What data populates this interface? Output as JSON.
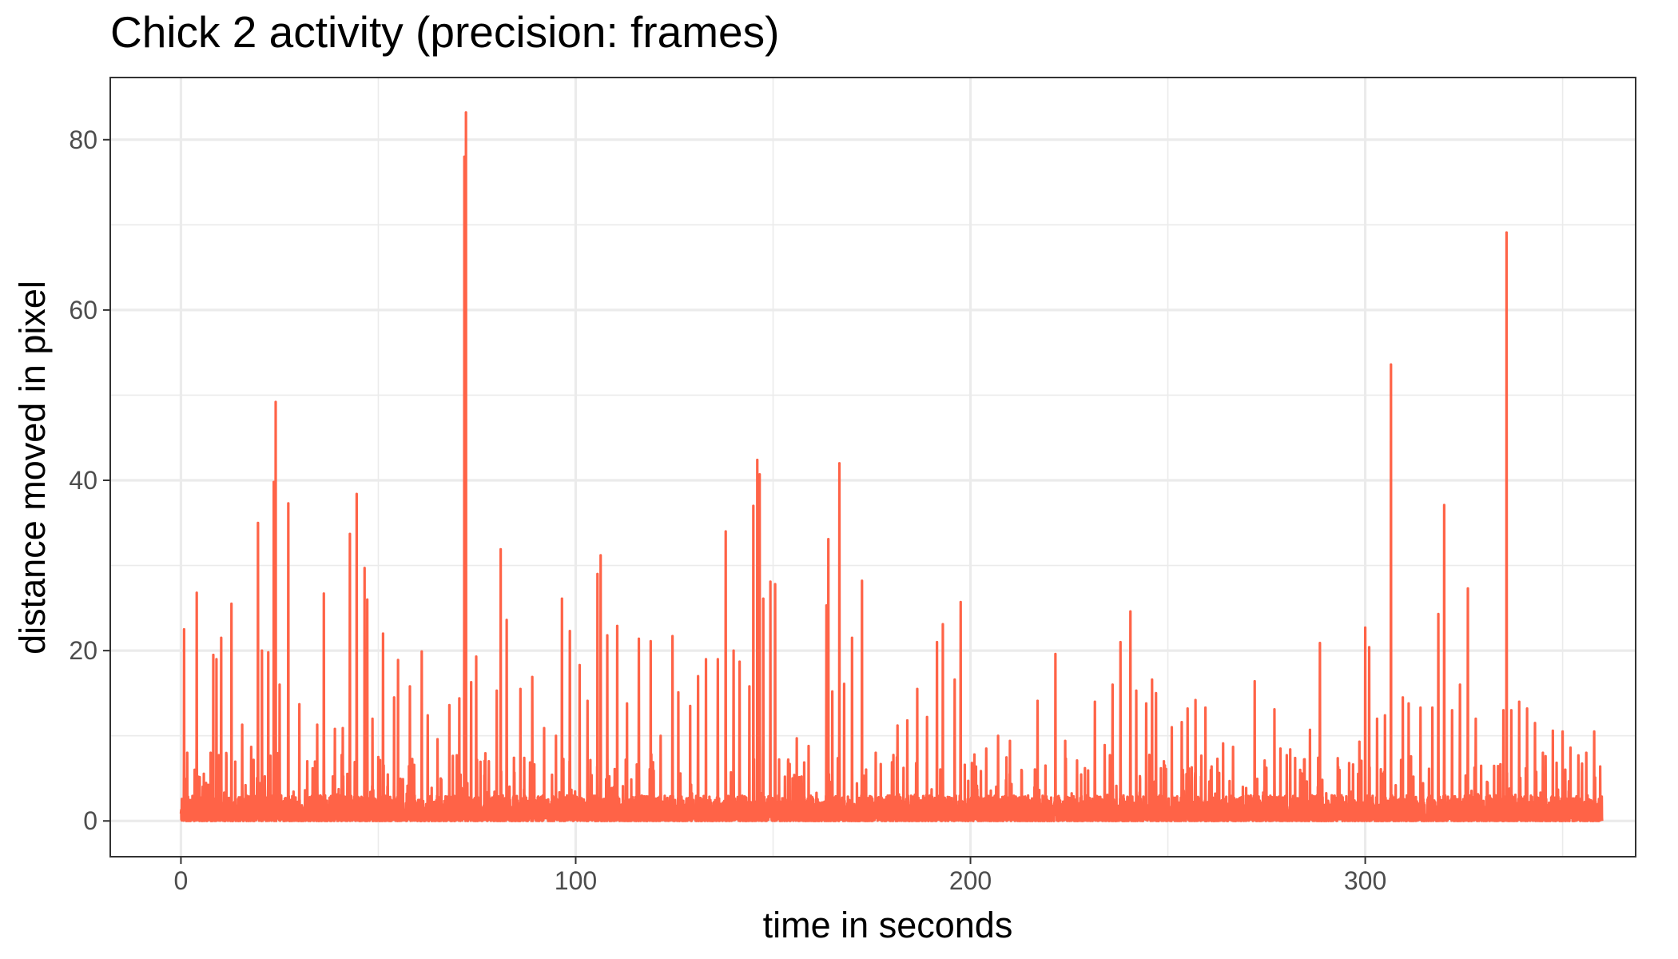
{
  "chart_data": {
    "type": "line",
    "title": "Chick 2 activity (precision: frames)",
    "xlabel": "time in seconds",
    "ylabel": "distance moved in pixel",
    "xlim": [
      -17.9,
      368.5
    ],
    "ylim": [
      -4.2,
      87.3
    ],
    "x_ticks": [
      0,
      100,
      200,
      300
    ],
    "y_ticks": [
      0,
      20,
      40,
      60,
      80
    ],
    "x_minor": [
      50,
      150,
      250,
      350
    ],
    "y_minor": [
      10,
      30,
      50,
      70
    ],
    "grid": true,
    "legend": "none",
    "color": "#FF6347",
    "series": [
      {
        "x": [
          0,
          360
        ],
        "sample_interval": 0.04,
        "baseline_max": 3,
        "peaks": [
          [
            0.8,
            22.5
          ],
          [
            1.6,
            8.0
          ],
          [
            4.0,
            26.8
          ],
          [
            7.5,
            8.0
          ],
          [
            8.2,
            19.5
          ],
          [
            9.0,
            19.0
          ],
          [
            10.2,
            21.5
          ],
          [
            12.8,
            25.5
          ],
          [
            15.5,
            11.3
          ],
          [
            17.8,
            8.7
          ],
          [
            19.5,
            35.0
          ],
          [
            20.5,
            20.0
          ],
          [
            22.1,
            19.8
          ],
          [
            23.5,
            39.8
          ],
          [
            24.0,
            49.2
          ],
          [
            25.0,
            16.0
          ],
          [
            27.2,
            37.3
          ],
          [
            30.0,
            13.7
          ],
          [
            32.0,
            7.0
          ],
          [
            34.5,
            11.3
          ],
          [
            36.2,
            26.7
          ],
          [
            39.0,
            10.8
          ],
          [
            41.0,
            10.9
          ],
          [
            42.8,
            33.7
          ],
          [
            44.5,
            38.4
          ],
          [
            46.5,
            29.7
          ],
          [
            47.2,
            26.0
          ],
          [
            48.5,
            12.0
          ],
          [
            50.0,
            7.5
          ],
          [
            51.2,
            22.0
          ],
          [
            54.0,
            14.5
          ],
          [
            55.0,
            18.9
          ],
          [
            58.0,
            15.8
          ],
          [
            61.0,
            19.9
          ],
          [
            62.5,
            12.4
          ],
          [
            65.0,
            9.6
          ],
          [
            68.0,
            13.6
          ],
          [
            70.5,
            14.4
          ],
          [
            71.8,
            78.0
          ],
          [
            72.2,
            83.2
          ],
          [
            73.5,
            16.3
          ],
          [
            74.8,
            19.3
          ],
          [
            78.0,
            7.0
          ],
          [
            80.0,
            15.3
          ],
          [
            81.0,
            31.9
          ],
          [
            82.5,
            23.6
          ],
          [
            86.0,
            15.5
          ],
          [
            89.0,
            16.9
          ],
          [
            92.0,
            10.9
          ],
          [
            95.0,
            10.0
          ],
          [
            96.5,
            26.1
          ],
          [
            98.5,
            22.3
          ],
          [
            101.0,
            18.3
          ],
          [
            103.0,
            14.1
          ],
          [
            105.5,
            29.0
          ],
          [
            106.3,
            31.2
          ],
          [
            108.0,
            21.8
          ],
          [
            110.5,
            22.9
          ],
          [
            113.0,
            13.8
          ],
          [
            116.0,
            21.4
          ],
          [
            119.0,
            21.1
          ],
          [
            121.5,
            10.0
          ],
          [
            124.5,
            21.7
          ],
          [
            126.0,
            15.1
          ],
          [
            129.0,
            13.5
          ],
          [
            131.0,
            17.0
          ],
          [
            133.0,
            19.0
          ],
          [
            136.0,
            19.0
          ],
          [
            138.0,
            34.0
          ],
          [
            140.0,
            20.0
          ],
          [
            141.5,
            18.7
          ],
          [
            144.0,
            15.8
          ],
          [
            145.0,
            37.0
          ],
          [
            146.0,
            42.4
          ],
          [
            146.6,
            40.7
          ],
          [
            147.5,
            26.1
          ],
          [
            149.3,
            28.1
          ],
          [
            150.5,
            27.8
          ],
          [
            153.0,
            5.2
          ],
          [
            156.0,
            9.7
          ],
          [
            159.0,
            8.8
          ],
          [
            161.0,
            3.3
          ],
          [
            163.5,
            25.3
          ],
          [
            164.0,
            33.1
          ],
          [
            165.0,
            15.2
          ],
          [
            166.8,
            42.0
          ],
          [
            168.0,
            16.1
          ],
          [
            170.0,
            21.5
          ],
          [
            172.5,
            28.2
          ],
          [
            176.0,
            8.0
          ],
          [
            180.0,
            2.5
          ],
          [
            181.5,
            11.2
          ],
          [
            184.0,
            11.8
          ],
          [
            186.5,
            15.5
          ],
          [
            189.0,
            12.2
          ],
          [
            191.5,
            21.0
          ],
          [
            193.0,
            23.1
          ],
          [
            196.0,
            16.6
          ],
          [
            197.5,
            25.7
          ],
          [
            201.0,
            7.8
          ],
          [
            204.0,
            8.5
          ],
          [
            207.0,
            10.0
          ],
          [
            210.0,
            9.4
          ],
          [
            213.0,
            5.9
          ],
          [
            217.0,
            14.1
          ],
          [
            219.0,
            6.5
          ],
          [
            221.5,
            19.6
          ],
          [
            224.0,
            9.4
          ],
          [
            227.0,
            7.1
          ],
          [
            229.0,
            6.2
          ],
          [
            231.5,
            14.0
          ],
          [
            234.0,
            8.9
          ],
          [
            236.0,
            16.0
          ],
          [
            238.0,
            21.0
          ],
          [
            240.5,
            24.6
          ],
          [
            242.0,
            15.3
          ],
          [
            244.5,
            13.8
          ],
          [
            246.0,
            16.6
          ],
          [
            247.0,
            15.0
          ],
          [
            249.0,
            7.0
          ],
          [
            251.0,
            11.0
          ],
          [
            253.5,
            11.6
          ],
          [
            255.0,
            13.2
          ],
          [
            257.0,
            14.2
          ],
          [
            259.5,
            13.3
          ],
          [
            262.0,
            3.2
          ],
          [
            264.0,
            9.1
          ],
          [
            266.5,
            8.7
          ],
          [
            269.0,
            4.0
          ],
          [
            272.0,
            16.4
          ],
          [
            274.5,
            7.1
          ],
          [
            277.0,
            13.1
          ],
          [
            278.5,
            8.5
          ],
          [
            281.0,
            8.4
          ],
          [
            283.5,
            6.0
          ],
          [
            286.0,
            10.7
          ],
          [
            288.5,
            20.9
          ],
          [
            291.5,
            3.0
          ],
          [
            294.0,
            3.0
          ],
          [
            296.5,
            2.7
          ],
          [
            298.5,
            9.3
          ],
          [
            300.0,
            22.7
          ],
          [
            301.0,
            20.4
          ],
          [
            303.0,
            12.0
          ],
          [
            305.0,
            12.4
          ],
          [
            306.5,
            53.6
          ],
          [
            309.5,
            14.5
          ],
          [
            311.0,
            13.8
          ],
          [
            314.0,
            13.3
          ],
          [
            317.0,
            13.3
          ],
          [
            318.5,
            24.3
          ],
          [
            320.0,
            37.1
          ],
          [
            322.0,
            13.0
          ],
          [
            324.0,
            16.0
          ],
          [
            326.0,
            27.3
          ],
          [
            328.0,
            12.0
          ],
          [
            331.0,
            4.5
          ],
          [
            333.0,
            3.0
          ],
          [
            335.0,
            13.0
          ],
          [
            335.8,
            69.1
          ],
          [
            337.0,
            13.0
          ],
          [
            339.0,
            14.0
          ],
          [
            341.0,
            13.2
          ],
          [
            343.0,
            11.5
          ],
          [
            345.0,
            8.0
          ],
          [
            347.5,
            10.6
          ],
          [
            350.0,
            10.5
          ],
          [
            352.0,
            8.6
          ],
          [
            354.0,
            7.7
          ],
          [
            356.0,
            8.0
          ],
          [
            358.0,
            10.5
          ],
          [
            359.5,
            6.4
          ]
        ]
      }
    ]
  }
}
